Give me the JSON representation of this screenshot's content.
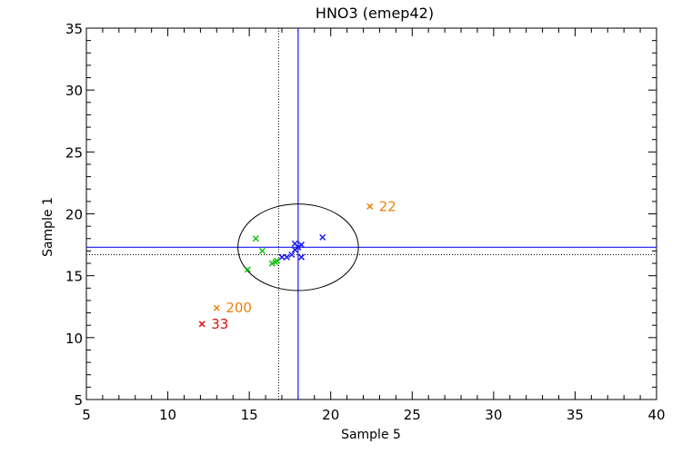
{
  "chart_data": {
    "type": "scatter",
    "title": "HNO3 (emep42)",
    "xlabel": "Sample 5",
    "ylabel": "Sample 1",
    "xlim": [
      5,
      40
    ],
    "ylim": [
      5,
      35
    ],
    "xticks": [
      5,
      10,
      15,
      20,
      25,
      30,
      35,
      40
    ],
    "yticks": [
      5,
      10,
      15,
      20,
      25,
      30,
      35
    ],
    "colors": {
      "blue": "#1a1af0",
      "green": "#10c010",
      "orange": "#e8820a",
      "red": "#e01010",
      "black": "#000000"
    },
    "series": [
      {
        "color_key": "blue",
        "points": [
          [
            17.0,
            16.5
          ],
          [
            17.3,
            16.5
          ],
          [
            17.6,
            16.7
          ],
          [
            17.8,
            17.1
          ],
          [
            17.8,
            17.6
          ],
          [
            18.0,
            17.3
          ],
          [
            18.2,
            17.5
          ],
          [
            18.2,
            16.5
          ],
          [
            19.5,
            18.1
          ]
        ]
      },
      {
        "color_key": "green",
        "points": [
          [
            15.4,
            18.0
          ],
          [
            15.8,
            17.0
          ],
          [
            14.9,
            15.5
          ],
          [
            16.4,
            16.0
          ],
          [
            16.6,
            16.1
          ],
          [
            16.7,
            16.2
          ]
        ]
      },
      {
        "color_key": "orange",
        "points": [
          [
            22.4,
            20.6
          ],
          [
            13.0,
            12.4
          ]
        ],
        "labels": [
          "22",
          "200"
        ]
      },
      {
        "color_key": "red",
        "points": [
          [
            12.1,
            11.1
          ]
        ],
        "labels": [
          "33"
        ]
      }
    ],
    "reference_lines": {
      "solid": {
        "x": 18.0,
        "y": 17.3,
        "color_key": "blue"
      },
      "dotted": {
        "x": 16.8,
        "y": 16.7,
        "color_key": "black"
      }
    },
    "ellipse": {
      "cx": 18.0,
      "cy": 17.3,
      "rx": 3.7,
      "ry": 3.5,
      "color_key": "black"
    }
  }
}
